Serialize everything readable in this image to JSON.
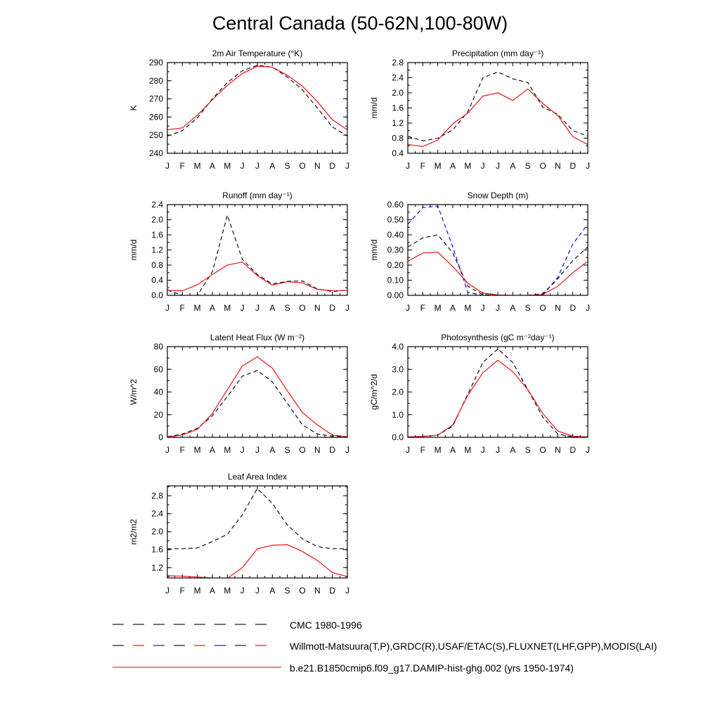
{
  "figure": {
    "title": "Central Canada (50-62N,100-80W)"
  },
  "months": [
    "J",
    "F",
    "M",
    "A",
    "M",
    "J",
    "J",
    "A",
    "S",
    "O",
    "N",
    "D",
    "J"
  ],
  "colors": {
    "obs": "#000000",
    "obs2": "#0000cc",
    "model": "#e8000b"
  },
  "chart_data": [
    {
      "type": "line",
      "title": "2m Air Temperature (°K)",
      "ylabel": "K",
      "ylim": [
        240,
        290
      ],
      "yticks": [
        240,
        250,
        260,
        270,
        280,
        290
      ],
      "ytick_labels": [
        "240",
        "250",
        "260",
        "270",
        "280",
        "290"
      ],
      "series": [
        {
          "name": "CMC 1980-1996",
          "style": "dash",
          "color": "#000000",
          "values": [
            249.5,
            252.5,
            259.5,
            270,
            279,
            285.5,
            288.5,
            287.5,
            282,
            275,
            265,
            254.5,
            249.5
          ]
        },
        {
          "name": "b.e21.B1850cmip6.f09_g17.DAMIP-hist-ghg.002 (yrs 1950-1974)",
          "style": "solid",
          "color": "#e8000b",
          "values": [
            253,
            254,
            261,
            269.5,
            277.5,
            284,
            288,
            287.5,
            283,
            277,
            268.5,
            258.5,
            253
          ]
        }
      ]
    },
    {
      "type": "line",
      "title": "Precipitation (mm day⁻¹)",
      "ylabel": "mm/d",
      "ylim": [
        0.4,
        2.8
      ],
      "yticks": [
        0.4,
        0.8,
        1.2,
        1.6,
        2.0,
        2.4,
        2.8
      ],
      "ytick_labels": [
        "0.4",
        "0.8",
        "1.2",
        "1.6",
        "2.0",
        "2.4",
        "2.8"
      ],
      "series": [
        {
          "name": "Willmott-Matsuura(T,P),GRDC(R),USAF/ETAC(S),FLUXNET(LHF,GPP),MODIS(LAI)",
          "style": "dash",
          "color": "#000000",
          "values": [
            0.85,
            0.73,
            0.8,
            1.02,
            1.5,
            2.4,
            2.55,
            2.37,
            2.27,
            1.62,
            1.43,
            1.0,
            0.85
          ]
        },
        {
          "name": "b.e21.B1850cmip6.f09_g17.DAMIP-hist-ghg.002 (yrs 1950-1974)",
          "style": "solid",
          "color": "#e8000b",
          "values": [
            0.63,
            0.58,
            0.75,
            1.18,
            1.46,
            1.91,
            2.0,
            1.8,
            2.1,
            1.72,
            1.4,
            0.84,
            0.63
          ]
        }
      ]
    },
    {
      "type": "line",
      "title": "Runoff (mm day⁻¹)",
      "ylabel": "mm/d",
      "ylim": [
        0,
        2.4
      ],
      "yticks": [
        0,
        0.4,
        0.8,
        1.2,
        1.6,
        2.0,
        2.4
      ],
      "ytick_labels": [
        "0.0",
        "0.4",
        "0.8",
        "1.2",
        "1.6",
        "2.0",
        "2.4"
      ],
      "series": [
        {
          "name": "Willmott-Matsuura(T,P),GRDC(R),USAF/ETAC(S),FLUXNET(LHF,GPP),MODIS(LAI)",
          "style": "dash",
          "color": "#000000",
          "values": [
            0.14,
            0.0,
            0.0,
            0.62,
            2.12,
            0.95,
            0.55,
            0.3,
            0.37,
            0.38,
            0.17,
            0.1,
            0.14
          ]
        },
        {
          "name": "b.e21.B1850cmip6.f09_g17.DAMIP-hist-ghg.002 (yrs 1950-1974)",
          "style": "solid",
          "color": "#e8000b",
          "values": [
            0.13,
            0.12,
            0.28,
            0.55,
            0.8,
            0.88,
            0.52,
            0.27,
            0.36,
            0.33,
            0.16,
            0.12,
            0.13
          ]
        }
      ]
    },
    {
      "type": "line",
      "title": "Snow Depth (m)",
      "ylabel": "mm/d",
      "ylim": [
        0,
        0.6
      ],
      "yticks": [
        0,
        0.1,
        0.2,
        0.3,
        0.4,
        0.5,
        0.6
      ],
      "ytick_labels": [
        "0.00",
        "0.10",
        "0.20",
        "0.30",
        "0.40",
        "0.50",
        "0.60"
      ],
      "series": [
        {
          "name": "CMC 1980-1996",
          "style": "dash",
          "color": "#000000",
          "values": [
            0.32,
            0.38,
            0.4,
            0.28,
            0.06,
            0.005,
            0.0,
            0.0,
            0.0,
            0.01,
            0.11,
            0.23,
            0.32
          ]
        },
        {
          "name": "Willmott-Matsuura(T,P),GRDC(R),USAF/ETAC(S),FLUXNET(LHF,GPP),MODIS(LAI)",
          "style": "dash",
          "color": "#0000cc",
          "values": [
            0.47,
            0.58,
            0.59,
            0.32,
            0.02,
            0.0,
            0.0,
            0.0,
            0.0,
            0.0,
            0.12,
            0.34,
            0.47
          ]
        },
        {
          "name": "b.e21.B1850cmip6.f09_g17.DAMIP-hist-ghg.002 (yrs 1950-1974)",
          "style": "solid",
          "color": "#e8000b",
          "values": [
            0.225,
            0.28,
            0.285,
            0.19,
            0.08,
            0.015,
            0.002,
            0.0,
            0.0,
            0.005,
            0.06,
            0.15,
            0.225
          ]
        }
      ]
    },
    {
      "type": "line",
      "title": "Latent Heat Flux (W m⁻²)",
      "ylabel": "W/m^2",
      "ylim": [
        0,
        80
      ],
      "yticks": [
        0,
        20,
        40,
        60,
        80
      ],
      "ytick_labels": [
        "0",
        "20",
        "40",
        "60",
        "80"
      ],
      "series": [
        {
          "name": "Willmott-Matsuura(T,P),GRDC(R),USAF/ETAC(S),FLUXNET(LHF,GPP),MODIS(LAI)",
          "style": "dash",
          "color": "#000000",
          "values": [
            0.5,
            3,
            8,
            19,
            36,
            54,
            59,
            49,
            30,
            11,
            3,
            1,
            0.5
          ]
        },
        {
          "name": "b.e21.B1850cmip6.f09_g17.DAMIP-hist-ghg.002 (yrs 1950-1974)",
          "style": "solid",
          "color": "#e8000b",
          "values": [
            0.5,
            2,
            7,
            21,
            42,
            63,
            71,
            61,
            41,
            22,
            11,
            2,
            0.5
          ]
        }
      ]
    },
    {
      "type": "line",
      "title": "Photosynthesis (gC m⁻²day⁻¹)",
      "ylabel": "gC/m^2/d",
      "ylim": [
        0,
        4
      ],
      "yticks": [
        0,
        1,
        2,
        3,
        4
      ],
      "ytick_labels": [
        "0.0",
        "1.0",
        "2.0",
        "3.0",
        "4.0"
      ],
      "series": [
        {
          "name": "Willmott-Matsuura(T,P),GRDC(R),USAF/ETAC(S),FLUXNET(LHF,GPP),MODIS(LAI)",
          "style": "dash",
          "color": "#000000",
          "values": [
            0.02,
            0.04,
            0.1,
            0.5,
            1.9,
            3.3,
            3.9,
            3.3,
            2.1,
            0.9,
            0.15,
            0.02,
            0.02
          ]
        },
        {
          "name": "b.e21.B1850cmip6.f09_g17.DAMIP-hist-ghg.002 (yrs 1950-1974)",
          "style": "solid",
          "color": "#e8000b",
          "values": [
            0.02,
            0.04,
            0.1,
            0.55,
            1.85,
            2.85,
            3.4,
            2.9,
            2.1,
            1.05,
            0.28,
            0.05,
            0.02
          ]
        }
      ]
    },
    {
      "type": "line",
      "title": "Leaf Area Index",
      "ylabel": "m2/m2",
      "ylim": [
        0.97,
        3.02
      ],
      "yticks": [
        1.2,
        1.6,
        2.0,
        2.4,
        2.8
      ],
      "ytick_labels": [
        "1.2",
        "1.6",
        "2.0",
        "2.4",
        "2.8"
      ],
      "series": [
        {
          "name": "Willmott-Matsuura(T,P),GRDC(R),USAF/ETAC(S),FLUXNET(LHF,GPP),MODIS(LAI)",
          "style": "dash",
          "color": "#000000",
          "values": [
            1.62,
            1.62,
            1.64,
            1.78,
            1.94,
            2.38,
            2.96,
            2.63,
            2.15,
            1.84,
            1.67,
            1.62,
            1.62
          ]
        },
        {
          "name": "b.e21.B1850cmip6.f09_g17.DAMIP-hist-ghg.002 (yrs 1950-1974)",
          "style": "solid",
          "color": "#e8000b",
          "values": [
            1.02,
            1.01,
            0.99,
            0.97,
            0.96,
            1.2,
            1.62,
            1.7,
            1.71,
            1.56,
            1.36,
            1.09,
            1.0
          ]
        }
      ]
    }
  ],
  "legend": [
    {
      "label": "CMC 1980-1996",
      "style": "dash",
      "colors": [
        "#000000"
      ]
    },
    {
      "label": "Willmott-Matsuura(T,P),GRDC(R),USAF/ETAC(S),FLUXNET(LHF,GPP),MODIS(LAI)",
      "style": "dash",
      "colors": [
        "#000000",
        "#e8000b",
        "#0000cc"
      ]
    },
    {
      "label": "b.e21.B1850cmip6.f09_g17.DAMIP-hist-ghg.002 (yrs 1950-1974)",
      "style": "solid",
      "colors": [
        "#e8000b"
      ]
    }
  ]
}
